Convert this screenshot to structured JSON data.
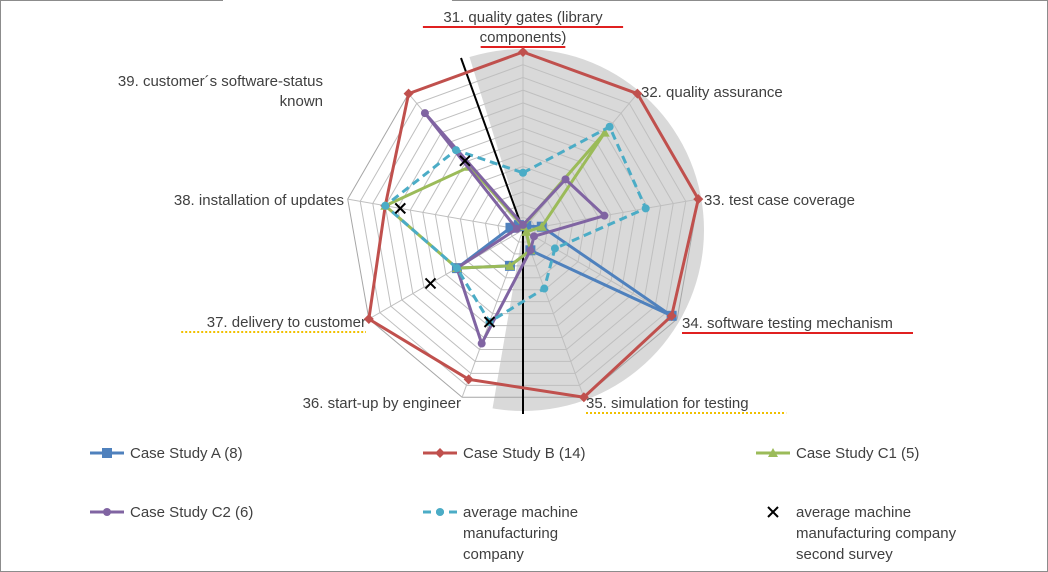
{
  "chart_data": {
    "type": "radar",
    "categories": [
      "31. quality gates (library components)",
      "32. quality assurance",
      "33. test case coverage",
      "34. software testing mechanism",
      "35. simulation for testing",
      "36. start-up by engineer",
      "37. delivery to customer",
      "38. installation of updates",
      "39. customer´s software-status known"
    ],
    "category_lines": [
      [
        "31. quality gates (library",
        "components)"
      ],
      [
        "32. quality assurance"
      ],
      [
        "33. test case coverage"
      ],
      [
        "34. software testing mechanism"
      ],
      [
        "35. simulation for testing"
      ],
      [
        "36. start-up by engineer"
      ],
      [
        "37. delivery to customer"
      ],
      [
        "38. installation of updates"
      ],
      [
        "39. customer´s software-status",
        "known"
      ]
    ],
    "category_emphasis": [
      "red",
      "none",
      "none",
      "red",
      "yellow",
      "none",
      "yellow",
      "none",
      "none"
    ],
    "rlim": [
      0,
      14
    ],
    "grid": true,
    "legend_position": "bottom",
    "series": [
      {
        "name": "Case Study A (8)",
        "color": "#4f81bd",
        "marker": "square",
        "dash": false,
        "values": [
          0.3,
          0.4,
          1.5,
          13.5,
          1.7,
          3.0,
          6.0,
          1.0,
          0.5
        ]
      },
      {
        "name": "Case Study B (14)",
        "color": "#c0504d",
        "marker": "diamond",
        "dash": false,
        "values": [
          14,
          14,
          14,
          13.5,
          14,
          12.5,
          14,
          11.0,
          14
        ]
      },
      {
        "name": "Case Study C1 (5)",
        "color": "#9bbb59",
        "marker": "triangle",
        "dash": false,
        "values": [
          0.3,
          10.0,
          1.5,
          0.3,
          1.7,
          3.0,
          6.0,
          11.0,
          6.5
        ]
      },
      {
        "name": "Case Study C2 (6)",
        "color": "#8064a2",
        "marker": "circle",
        "dash": false,
        "values": [
          0.4,
          5.2,
          6.5,
          1.0,
          1.7,
          9.5,
          6.0,
          0.5,
          12.0
        ]
      },
      {
        "name": "average machine manufacturing company",
        "legend_lines": [
          "average machine",
          "manufacturing",
          "company"
        ],
        "color": "#4bacc6",
        "marker": "circle",
        "dash": true,
        "values": [
          4.5,
          10.6,
          9.8,
          2.9,
          4.9,
          7.7,
          6.0,
          11.0,
          8.2
        ]
      },
      {
        "name": "average machine manufacturing company second survey",
        "legend_lines": [
          "average machine",
          "manufacturing company",
          "second survey"
        ],
        "color": "#000000",
        "marker": "x",
        "dash": false,
        "line": false,
        "values": [
          null,
          null,
          null,
          null,
          null,
          7.7,
          8.4,
          9.8,
          7.1
        ]
      }
    ]
  }
}
